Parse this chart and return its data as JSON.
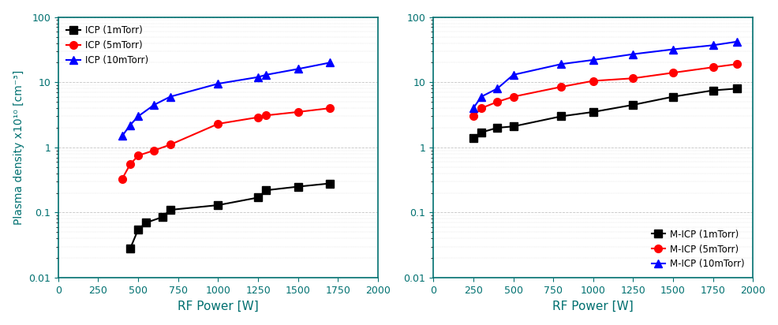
{
  "left_title": "",
  "right_title": "",
  "ylabel": "Plasma density x10¹⁰ [cm⁻³]",
  "xlabel": "RF Power [W]",
  "left": {
    "icp_1mtorr": {
      "x": [
        450,
        500,
        550,
        650,
        700,
        1000,
        1250,
        1300,
        1500,
        1700
      ],
      "y": [
        0.028,
        0.055,
        0.07,
        0.085,
        0.11,
        0.13,
        0.17,
        0.22,
        0.25,
        0.28
      ],
      "color": "#000000",
      "marker": "s",
      "label": "ICP (1mTorr)"
    },
    "icp_5mtorr": {
      "x": [
        400,
        450,
        500,
        600,
        700,
        1000,
        1250,
        1300,
        1500,
        1700
      ],
      "y": [
        0.33,
        0.55,
        0.75,
        0.9,
        1.1,
        2.3,
        2.9,
        3.1,
        3.5,
        4.0
      ],
      "color": "#ff0000",
      "marker": "o",
      "label": "ICP (5mTorr)"
    },
    "icp_10mtorr": {
      "x": [
        400,
        450,
        500,
        600,
        700,
        1000,
        1250,
        1300,
        1500,
        1700
      ],
      "y": [
        1.5,
        2.2,
        3.0,
        4.5,
        6.0,
        9.5,
        12.0,
        13.0,
        16.0,
        20.0
      ],
      "color": "#0000ff",
      "marker": "^",
      "label": "ICP (10mTorr)"
    },
    "xlim": [
      0,
      2000
    ],
    "ylim": [
      0.01,
      100
    ],
    "xticks": [
      0,
      250,
      500,
      750,
      1000,
      1250,
      1500,
      1750,
      2000
    ]
  },
  "right": {
    "micp_1mtorr": {
      "x": [
        250,
        300,
        400,
        500,
        800,
        1000,
        1250,
        1500,
        1750,
        1900
      ],
      "y": [
        1.4,
        1.7,
        2.0,
        2.1,
        3.0,
        3.5,
        4.5,
        6.0,
        7.5,
        8.0
      ],
      "color": "#000000",
      "marker": "s",
      "label": "M-ICP (1mTorr)"
    },
    "micp_5mtorr": {
      "x": [
        250,
        300,
        400,
        500,
        800,
        1000,
        1250,
        1500,
        1750,
        1900
      ],
      "y": [
        3.0,
        4.0,
        5.0,
        6.0,
        8.5,
        10.5,
        11.5,
        14.0,
        17.0,
        19.0
      ],
      "color": "#ff0000",
      "marker": "o",
      "label": "M-ICP (5mTorr)"
    },
    "micp_10mtorr": {
      "x": [
        250,
        300,
        400,
        500,
        800,
        1000,
        1250,
        1500,
        1750,
        1900
      ],
      "y": [
        4.0,
        6.0,
        8.0,
        13.0,
        19.0,
        22.0,
        27.0,
        32.0,
        37.0,
        42.0
      ],
      "color": "#0000ff",
      "marker": "^",
      "label": "M-ICP (10mTorr)"
    },
    "xlim": [
      0,
      2000
    ],
    "ylim": [
      0.01,
      100
    ],
    "xticks": [
      0,
      250,
      500,
      750,
      1000,
      1250,
      1500,
      1750,
      2000
    ]
  },
  "axis_color": "#007070",
  "tick_color": "#007070",
  "label_color": "#007070",
  "grid_color": "#aaaaaa",
  "legend_loc_left": "upper left",
  "legend_loc_right": "lower right",
  "markersize": 7,
  "linewidth": 1.5
}
